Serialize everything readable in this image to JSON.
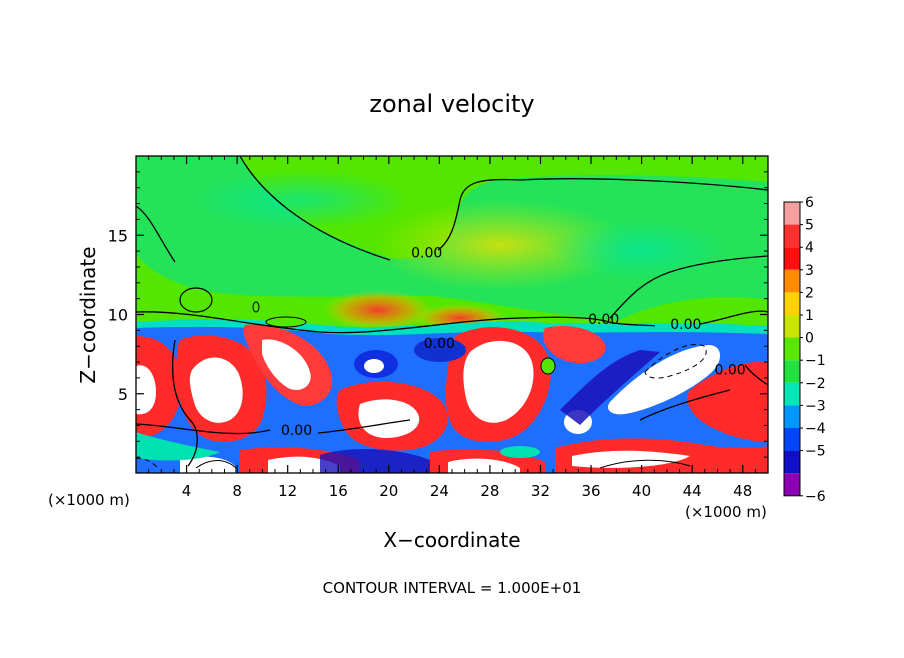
{
  "chart_data": {
    "type": "heatmap",
    "title": "zonal velocity",
    "xlabel": "X−coordinate",
    "ylabel": "Z−coordinate",
    "x_unit_label": "(×1000 m)",
    "z_unit_label": "(×1000 m)",
    "footer": "CONTOUR INTERVAL = 1.000E+01",
    "xlim": [
      0,
      50
    ],
    "ylim": [
      0,
      20
    ],
    "x_ticks": [
      4,
      8,
      12,
      16,
      20,
      24,
      28,
      32,
      36,
      40,
      44,
      48
    ],
    "y_ticks": [
      5,
      10,
      15
    ],
    "contour_label": "0.00",
    "colorbar": {
      "levels": [
        6,
        5,
        4,
        3,
        2,
        1,
        0,
        -1,
        -2,
        -3,
        -4,
        -5,
        -6
      ],
      "colors": [
        "#f5a0a0",
        "#ff3030",
        "#ff1010",
        "#ff8c00",
        "#ffd200",
        "#c8e600",
        "#5ae600",
        "#22e040",
        "#00e6b4",
        "#0096ff",
        "#0046ff",
        "#1010c8",
        "#8c00b4"
      ]
    },
    "contour_labels": [
      {
        "x": 23,
        "z": 13.6,
        "text": "0.00"
      },
      {
        "x": 24,
        "z": 7.9,
        "text": "0.00"
      },
      {
        "x": 37,
        "z": 9.4,
        "text": "0.00"
      },
      {
        "x": 43.5,
        "z": 9.1,
        "text": "0.00"
      },
      {
        "x": 47,
        "z": 6.2,
        "text": "0.00"
      },
      {
        "x": 12.7,
        "z": 2.4,
        "text": "0.00"
      }
    ]
  }
}
